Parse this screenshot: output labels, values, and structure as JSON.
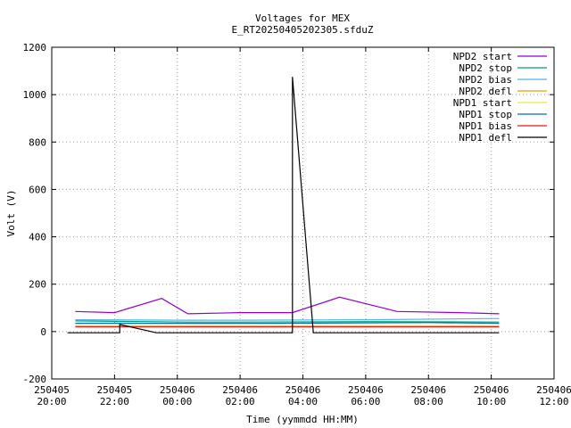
{
  "chart_data": {
    "type": "line",
    "title": "Voltages for MEX",
    "subtitle": "E_RT20250405202305.sfduZ",
    "xlabel": "Time (yymmdd HH:MM)",
    "ylabel": "Volt (V)",
    "xlim": [
      "2025-04-05 20:00",
      "2025-04-06 12:00"
    ],
    "ylim": [
      -200,
      1200
    ],
    "yticks": [
      -200,
      0,
      200,
      400,
      600,
      800,
      1000,
      1200
    ],
    "xticks": [
      {
        "date": "250405",
        "time": "20:00"
      },
      {
        "date": "250405",
        "time": "22:00"
      },
      {
        "date": "250406",
        "time": "00:00"
      },
      {
        "date": "250406",
        "time": "02:00"
      },
      {
        "date": "250406",
        "time": "04:00"
      },
      {
        "date": "250406",
        "time": "06:00"
      },
      {
        "date": "250406",
        "time": "08:00"
      },
      {
        "date": "250406",
        "time": "10:00"
      },
      {
        "date": "250406",
        "time": "12:00"
      }
    ],
    "grid": true,
    "legend_position": "top-right",
    "series": [
      {
        "name": "NPD2 start",
        "color": "#9400d3",
        "x": [
          "2025-04-05 20:45",
          "2025-04-05 22:00",
          "2025-04-05 23:30",
          "2025-04-06 00:20",
          "2025-04-06 02:00",
          "2025-04-06 03:40",
          "2025-04-06 05:10",
          "2025-04-06 07:00",
          "2025-04-06 09:00",
          "2025-04-06 10:15"
        ],
        "y": [
          85,
          80,
          140,
          75,
          80,
          80,
          145,
          85,
          80,
          75
        ]
      },
      {
        "name": "NPD2 stop",
        "color": "#009e73",
        "x": [
          "2025-04-05 20:45",
          "2025-04-06 00:20",
          "2025-04-06 02:00",
          "2025-04-06 06:00",
          "2025-04-06 10:15"
        ],
        "y": [
          45,
          40,
          40,
          42,
          40
        ]
      },
      {
        "name": "NPD2 bias",
        "color": "#56b4e9",
        "x": [
          "2025-04-05 20:45",
          "2025-04-06 00:20",
          "2025-04-06 02:00",
          "2025-04-06 06:00",
          "2025-04-06 10:15"
        ],
        "y": [
          50,
          48,
          48,
          50,
          55
        ]
      },
      {
        "name": "NPD2 defl",
        "color": "#e69f00",
        "x": [
          "2025-04-05 20:45",
          "2025-04-05 23:00",
          "2025-04-06 01:00",
          "2025-04-06 04:30",
          "2025-04-06 07:00",
          "2025-04-06 10:15"
        ],
        "y": [
          22,
          22,
          22,
          22,
          22,
          22
        ]
      },
      {
        "name": "NPD1 start",
        "color": "#f0e442",
        "x": [
          "2025-04-05 20:45",
          "2025-04-06 02:00",
          "2025-04-06 10:15"
        ],
        "y": [
          25,
          25,
          25
        ]
      },
      {
        "name": "NPD1 stop",
        "color": "#0072b2",
        "x": [
          "2025-04-05 20:45",
          "2025-04-06 03:00",
          "2025-04-06 08:00",
          "2025-04-06 10:15"
        ],
        "y": [
          35,
          35,
          38,
          35
        ]
      },
      {
        "name": "NPD1 bias",
        "color": "#e51e10",
        "x": [
          "2025-04-05 20:45",
          "2025-04-06 02:00",
          "2025-04-06 10:15"
        ],
        "y": [
          20,
          20,
          20
        ]
      },
      {
        "name": "NPD1 defl",
        "color": "#000000",
        "x": [
          "2025-04-05 20:30",
          "2025-04-05 22:10",
          "2025-04-05 22:10",
          "2025-04-05 23:20",
          "2025-04-06 01:15",
          "2025-04-06 03:40",
          "2025-04-06 03:40",
          "2025-04-06 04:20",
          "2025-04-06 08:50",
          "2025-04-06 10:15"
        ],
        "y": [
          -5,
          -5,
          30,
          -5,
          -5,
          -5,
          1075,
          -5,
          -5,
          -5
        ]
      }
    ]
  }
}
